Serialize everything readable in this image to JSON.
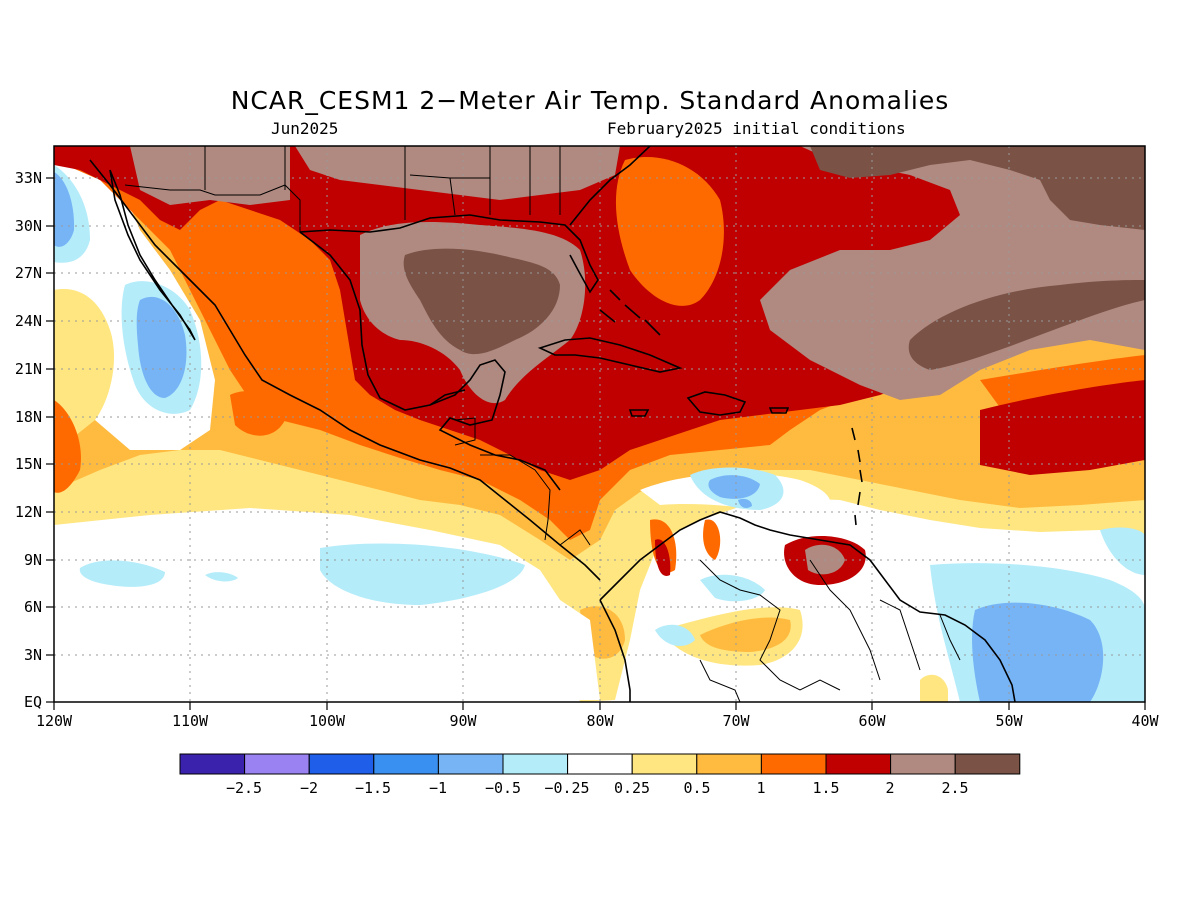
{
  "title": "NCAR_CESM1 2−Meter Air Temp. Standard Anomalies",
  "subtitle_left": "Jun2025",
  "subtitle_right": "February2025 initial conditions",
  "map": {
    "region": "Caribbean / Gulf of Mexico / Eastern Pacific",
    "lon_range": [
      -120,
      -40
    ],
    "lat_range": [
      0,
      35
    ],
    "gridlines": "dotted",
    "lat_ticks": [
      "EQ",
      "3N",
      "6N",
      "9N",
      "12N",
      "15N",
      "18N",
      "21N",
      "24N",
      "27N",
      "30N",
      "33N"
    ],
    "lon_ticks": [
      "120W",
      "110W",
      "100W",
      "90W",
      "80W",
      "70W",
      "60W",
      "50W",
      "40W"
    ]
  },
  "colorbar": {
    "colors": [
      "#3b22ac",
      "#9a82f2",
      "#1e5ee8",
      "#3a90f0",
      "#76b4f6",
      "#b4ecfa",
      "#ffffff",
      "#ffe680",
      "#ffbb40",
      "#ff6a00",
      "#c00000",
      "#b08a80",
      "#7a5246"
    ],
    "labels": [
      "−2.5",
      "−2",
      "−1.5",
      "−1",
      "−0.5",
      "−0.25",
      "0.25",
      "0.5",
      "1",
      "1.5",
      "2",
      "2.5"
    ]
  }
}
